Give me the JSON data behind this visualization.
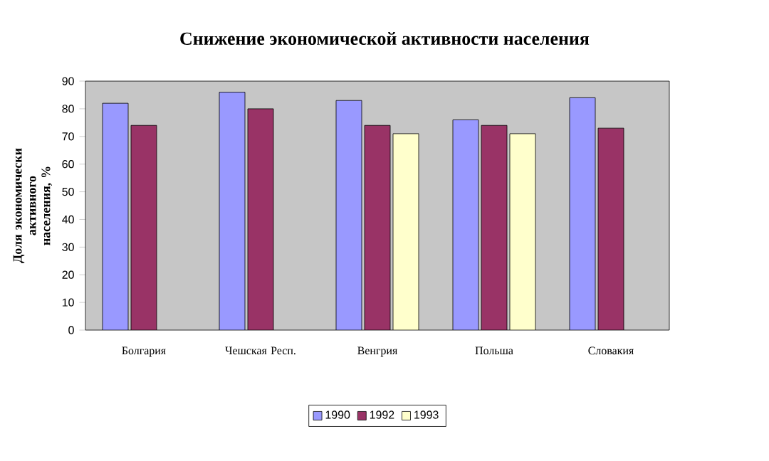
{
  "chart_data": {
    "type": "bar",
    "title": "Снижение экономической активности населения",
    "ylabel": "Доля экономически активного населения, %",
    "categories": [
      "Болгария",
      "Чешская Респ.",
      "Венгрия",
      "Польша",
      "Словакия"
    ],
    "series": [
      {
        "name": "1990",
        "color": "#9999ff",
        "values": [
          82,
          86,
          83,
          76,
          84
        ]
      },
      {
        "name": "1992",
        "color": "#993366",
        "values": [
          74,
          80,
          74,
          74,
          73
        ]
      },
      {
        "name": "1993",
        "color": "#ffffcc",
        "values": [
          null,
          null,
          71,
          71,
          null
        ]
      }
    ],
    "ylim": [
      0,
      90
    ],
    "yticks": [
      0,
      10,
      20,
      30,
      40,
      50,
      60,
      70,
      80,
      90
    ],
    "legend": "bottom",
    "grid": false
  }
}
